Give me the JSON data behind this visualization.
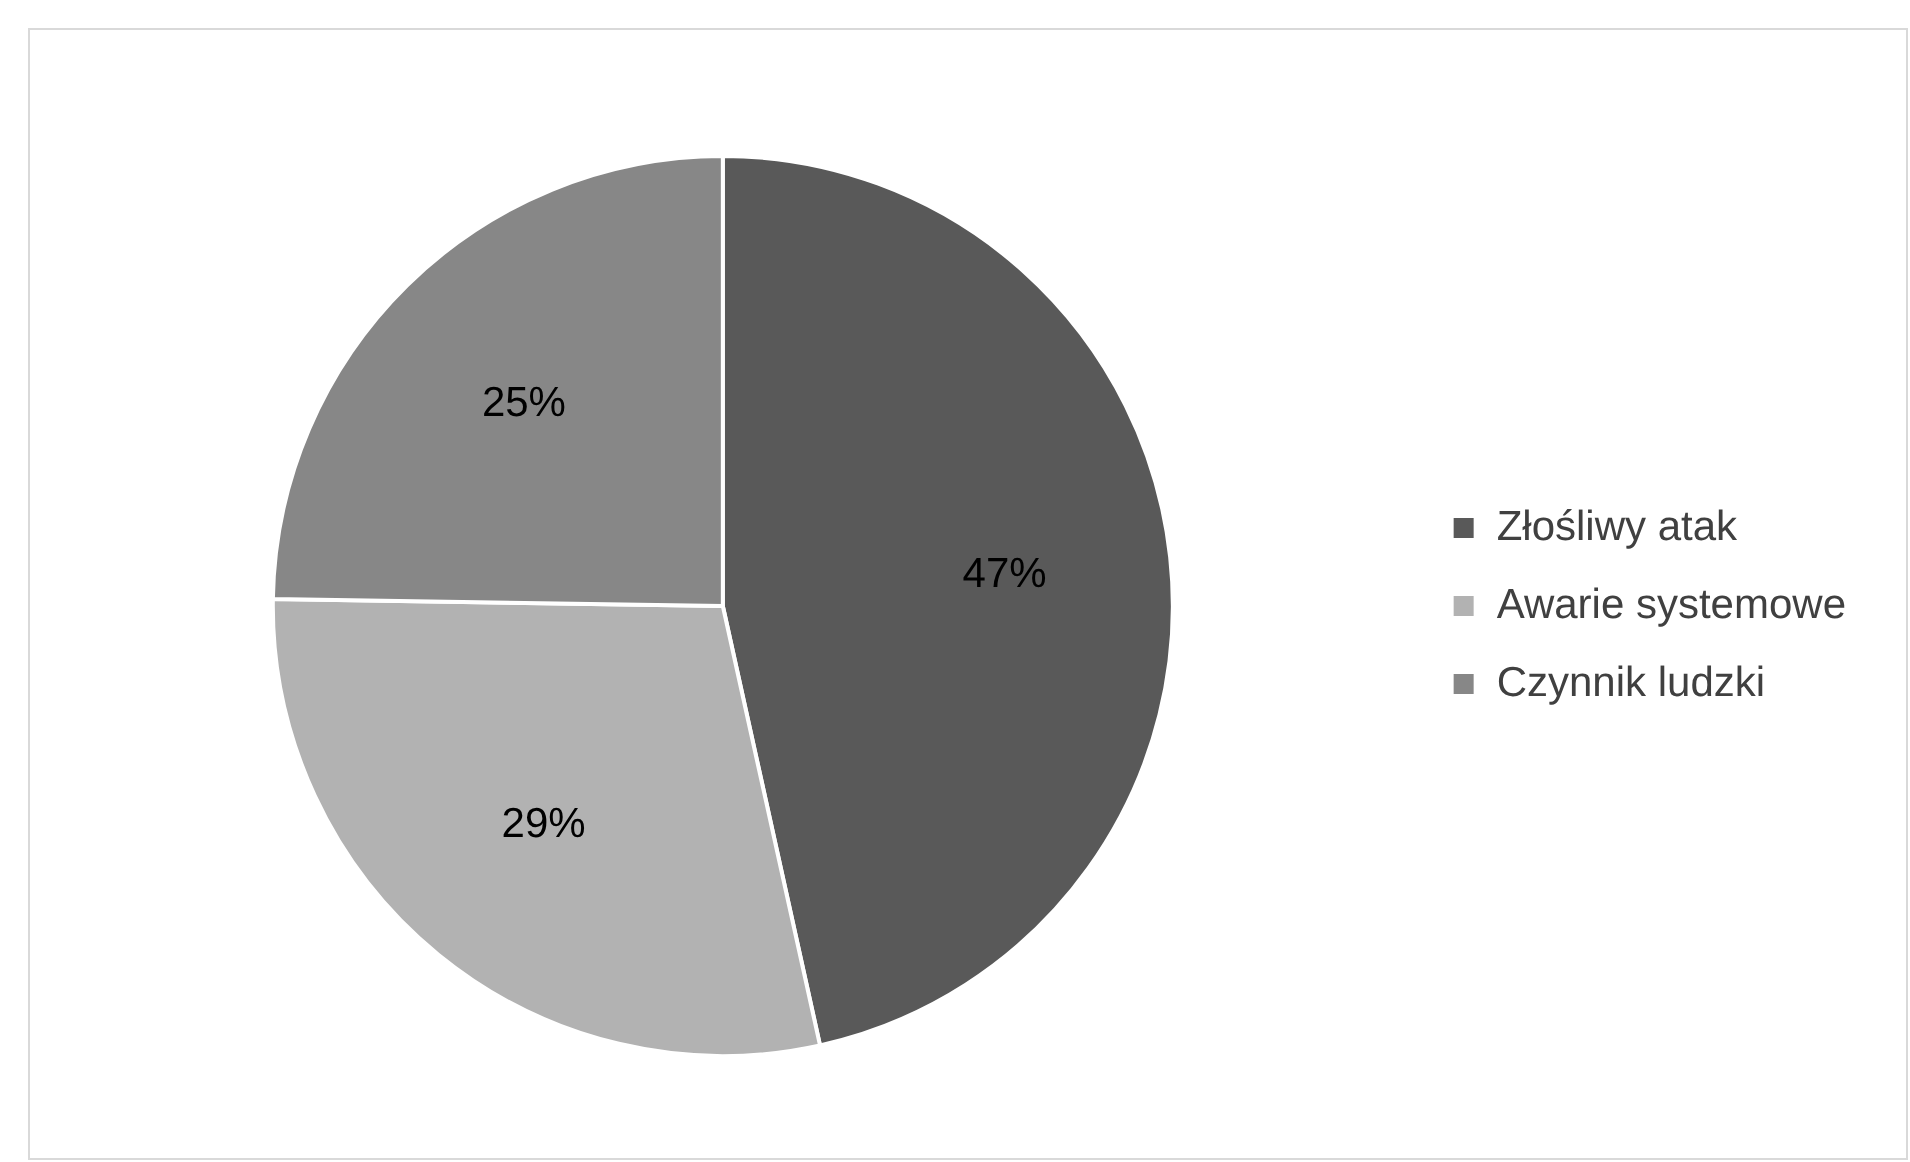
{
  "chart_data": {
    "type": "pie",
    "categories": [
      "Złośliwy atak",
      "Awarie systemowe",
      "Czynnik ludzki"
    ],
    "values": [
      47,
      29,
      25
    ],
    "colors": [
      "#595959",
      "#b2b2b2",
      "#878787"
    ],
    "data_labels": true,
    "value_labels": [
      "47%",
      "29%",
      "25%"
    ],
    "legend": "right"
  }
}
